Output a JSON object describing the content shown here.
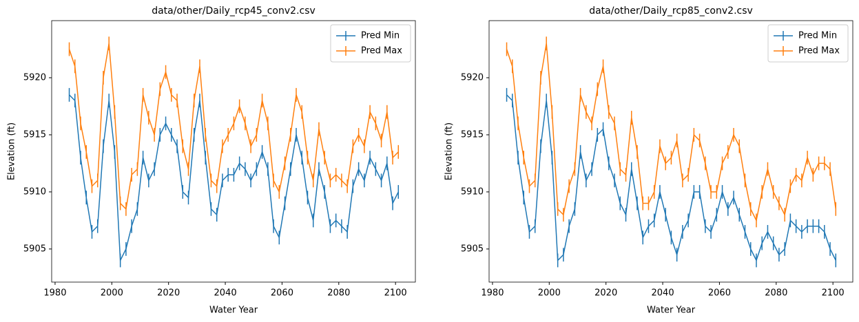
{
  "chart_data": [
    {
      "type": "line",
      "title": "data/other/Daily_rcp45_conv2.csv",
      "x_label": "Water Year",
      "y_label": "Elevation (ft)",
      "x": [
        1985,
        1987,
        1989,
        1991,
        1993,
        1995,
        1997,
        1999,
        2001,
        2003,
        2005,
        2007,
        2009,
        2011,
        2013,
        2015,
        2017,
        2019,
        2021,
        2023,
        2025,
        2027,
        2029,
        2031,
        2033,
        2035,
        2037,
        2039,
        2041,
        2043,
        2045,
        2047,
        2049,
        2051,
        2053,
        2055,
        2057,
        2059,
        2061,
        2063,
        2065,
        2067,
        2069,
        2071,
        2073,
        2075,
        2077,
        2079,
        2081,
        2083,
        2085,
        2087,
        2089,
        2091,
        2093,
        2095,
        2097,
        2099,
        2101
      ],
      "xlim": [
        1978.8,
        2107
      ],
      "xticks": [
        1980,
        2000,
        2020,
        2040,
        2060,
        2080,
        2100
      ],
      "ylim": [
        5902.1,
        5925
      ],
      "yticks": [
        5905,
        5910,
        5915,
        5920
      ],
      "legend": "upper right",
      "series": [
        {
          "name": "Pred Min",
          "color": "#1f77b4",
          "yerr": 0.6,
          "values": [
            5918.5,
            5918,
            5913,
            5909.5,
            5906.5,
            5907,
            5914,
            5918,
            5913.5,
            5904,
            5905,
            5907,
            5908.5,
            5913,
            5911,
            5912,
            5915,
            5916,
            5915,
            5914,
            5910,
            5909.5,
            5915,
            5918,
            5913,
            5908.5,
            5908,
            5911,
            5911.5,
            5911.5,
            5912.5,
            5912,
            5911,
            5912,
            5913.5,
            5912,
            5907,
            5906,
            5909,
            5912,
            5915,
            5913,
            5909.5,
            5907.5,
            5912,
            5910,
            5907,
            5907.5,
            5907,
            5906.5,
            5910.5,
            5912,
            5911,
            5913,
            5912,
            5911,
            5912.5,
            5909,
            5910
          ]
        },
        {
          "name": "Pred Max",
          "color": "#ff7f0e",
          "yerr": 0.6,
          "values": [
            5922.5,
            5921,
            5916,
            5913.5,
            5910.5,
            5911,
            5920,
            5923,
            5917,
            5909,
            5908.5,
            5911.5,
            5912,
            5918.5,
            5916.5,
            5915,
            5919,
            5920.5,
            5918.5,
            5918,
            5914,
            5912,
            5918,
            5921,
            5915,
            5911,
            5910.5,
            5914,
            5915,
            5916,
            5917.5,
            5916,
            5914,
            5915,
            5918,
            5916,
            5911,
            5910,
            5912.5,
            5915,
            5918.5,
            5917,
            5913,
            5911,
            5915.5,
            5913,
            5911,
            5911.5,
            5911,
            5910.5,
            5914,
            5915,
            5914,
            5917,
            5916,
            5914.5,
            5917,
            5913,
            5913.5
          ]
        }
      ]
    },
    {
      "type": "line",
      "title": "data/other/Daily_rcp85_conv2.csv",
      "x_label": "Water Year",
      "y_label": "Elevation (ft)",
      "x": [
        1985,
        1987,
        1989,
        1991,
        1993,
        1995,
        1997,
        1999,
        2001,
        2003,
        2005,
        2007,
        2009,
        2011,
        2013,
        2015,
        2017,
        2019,
        2021,
        2023,
        2025,
        2027,
        2029,
        2031,
        2033,
        2035,
        2037,
        2039,
        2041,
        2043,
        2045,
        2047,
        2049,
        2051,
        2053,
        2055,
        2057,
        2059,
        2061,
        2063,
        2065,
        2067,
        2069,
        2071,
        2073,
        2075,
        2077,
        2079,
        2081,
        2083,
        2085,
        2087,
        2089,
        2091,
        2093,
        2095,
        2097,
        2099,
        2101
      ],
      "xlim": [
        1978.8,
        2107
      ],
      "xticks": [
        1980,
        2000,
        2020,
        2040,
        2060,
        2080,
        2100
      ],
      "ylim": [
        5902.1,
        5925
      ],
      "yticks": [
        5905,
        5910,
        5915,
        5920
      ],
      "legend": "upper right",
      "series": [
        {
          "name": "Pred Min",
          "color": "#1f77b4",
          "yerr": 0.6,
          "values": [
            5918.5,
            5918,
            5913,
            5909.5,
            5906.5,
            5907,
            5914,
            5918,
            5913,
            5904,
            5904.5,
            5907,
            5908.5,
            5913.5,
            5911,
            5912,
            5915,
            5915.5,
            5912.5,
            5911,
            5909,
            5908,
            5912,
            5909,
            5906,
            5907,
            5907.5,
            5910,
            5908,
            5906,
            5904.5,
            5906.5,
            5907.5,
            5910,
            5910,
            5907,
            5906.5,
            5908,
            5910,
            5908.5,
            5909.5,
            5908,
            5906.5,
            5905,
            5904,
            5905.5,
            5906.5,
            5905.5,
            5904.5,
            5905,
            5907.5,
            5907,
            5906.5,
            5907,
            5907,
            5907,
            5906.5,
            5905,
            5904
          ]
        },
        {
          "name": "Pred Max",
          "color": "#ff7f0e",
          "yerr": 0.6,
          "values": [
            5922.5,
            5921,
            5916,
            5913,
            5910.5,
            5911,
            5920,
            5923,
            5917,
            5908.5,
            5908,
            5910.5,
            5912,
            5918.5,
            5917,
            5916,
            5919,
            5921,
            5917,
            5916,
            5912,
            5911.5,
            5916.5,
            5913.5,
            5909,
            5909,
            5910,
            5914,
            5912.5,
            5913,
            5914.5,
            5911,
            5911.5,
            5915,
            5914.5,
            5912.5,
            5910,
            5910,
            5912.5,
            5913.5,
            5915,
            5914,
            5911,
            5908.5,
            5907.5,
            5910,
            5912,
            5910,
            5909,
            5908,
            5910.5,
            5911.5,
            5911,
            5913,
            5911.5,
            5912.5,
            5912.5,
            5912,
            5908.5
          ]
        }
      ]
    }
  ]
}
